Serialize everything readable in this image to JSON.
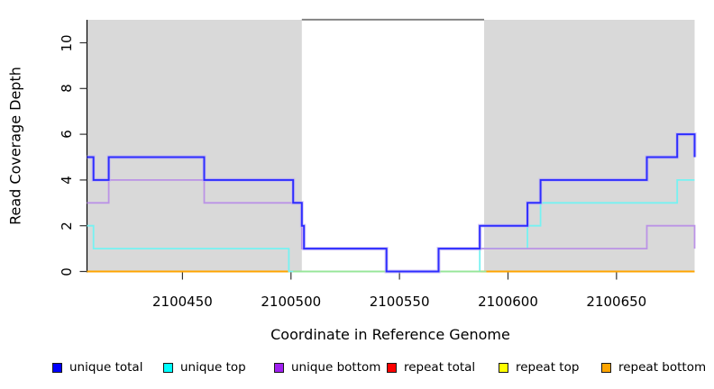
{
  "chart_data": {
    "type": "line",
    "subtype": "step",
    "title": "",
    "xlabel": "Coordinate in Reference Genome",
    "ylabel": "Read Coverage Depth",
    "xlim": [
      2100406,
      2100686
    ],
    "ylim": [
      0,
      11
    ],
    "xticks": [
      2100450,
      2100500,
      2100550,
      2100600,
      2100650
    ],
    "yticks": [
      0,
      2,
      4,
      6,
      8,
      10
    ],
    "grid": false,
    "shaded_regions": [
      {
        "from": 2100406,
        "to": 2100505,
        "color": "#d9d9d9"
      },
      {
        "from": 2100589,
        "to": 2100686,
        "color": "#d9d9d9"
      }
    ],
    "masked_region": {
      "from": 2100505,
      "to": 2100589,
      "top_border_color": "#7d7d7d"
    },
    "baseline_overlap": {
      "from": 2100501,
      "to": 2100590,
      "value": 0,
      "color": "#98e698"
    },
    "series": [
      {
        "name": "unique total",
        "color": "#0000ff",
        "line_color": "#2d2dff",
        "halo_color": "#c3b2f4",
        "steps": [
          [
            2100406,
            5
          ],
          [
            2100409,
            4
          ],
          [
            2100416,
            5
          ],
          [
            2100460,
            4
          ],
          [
            2100501,
            3
          ],
          [
            2100505,
            2
          ],
          [
            2100506,
            1
          ],
          [
            2100544,
            0
          ],
          [
            2100568,
            1
          ],
          [
            2100587,
            2
          ],
          [
            2100609,
            3
          ],
          [
            2100615,
            4
          ],
          [
            2100664,
            5
          ],
          [
            2100678,
            6
          ]
        ],
        "end_value": 5
      },
      {
        "name": "unique top",
        "color": "#00ffff",
        "line_color": "#76f2f2",
        "steps": [
          [
            2100406,
            2
          ],
          [
            2100409,
            1
          ],
          [
            2100499,
            0
          ],
          [
            2100587,
            1
          ],
          [
            2100609,
            2
          ],
          [
            2100615,
            3
          ],
          [
            2100678,
            4
          ]
        ],
        "end_value": null
      },
      {
        "name": "unique bottom",
        "color": "#a020f0",
        "line_color": "#bb93e6",
        "steps": [
          [
            2100406,
            3
          ],
          [
            2100416,
            4
          ],
          [
            2100460,
            3
          ],
          [
            2100505,
            1
          ],
          [
            2100544,
            0
          ],
          [
            2100568,
            1
          ],
          [
            2100664,
            2
          ]
        ],
        "end_value": 1
      },
      {
        "name": "repeat total",
        "color": "#ff0000",
        "line_color": "#ff0000",
        "steps": [
          [
            2100406,
            0
          ]
        ],
        "end_value": null
      },
      {
        "name": "repeat top",
        "color": "#ffff00",
        "line_color": "#ffff00",
        "steps": [
          [
            2100406,
            0
          ]
        ],
        "end_value": null
      },
      {
        "name": "repeat bottom",
        "color": "#ffa500",
        "line_color": "#ffa500",
        "steps": [
          [
            2100406,
            0
          ]
        ],
        "end_value": null
      }
    ]
  },
  "legend": {
    "items": [
      {
        "label": "unique total",
        "color": "#0000ff"
      },
      {
        "label": "unique top",
        "color": "#00ffff"
      },
      {
        "label": "unique bottom",
        "color": "#a020f0"
      },
      {
        "label": "repeat total",
        "color": "#ff0000"
      },
      {
        "label": "repeat top",
        "color": "#ffff00"
      },
      {
        "label": "repeat bottom",
        "color": "#ffa500"
      }
    ]
  }
}
